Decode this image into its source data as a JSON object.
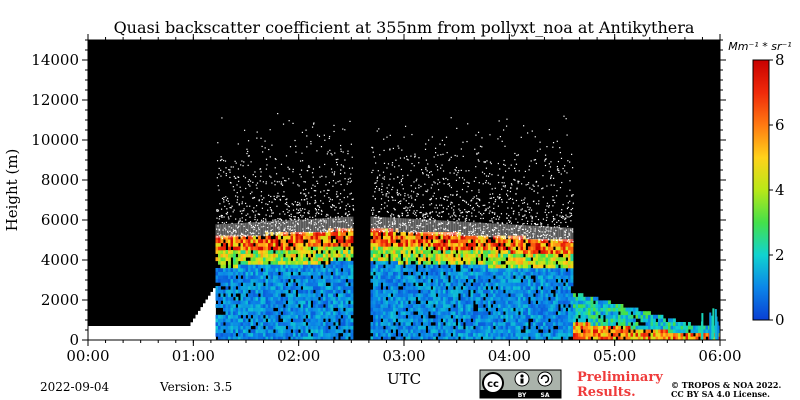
{
  "chart_data": {
    "type": "heatmap",
    "title": "Quasi backscatter coefficient at 355nm from pollyxt_noa at Antikythera",
    "xlabel": "UTC",
    "ylabel": "Height (m)",
    "x_ticks": [
      "00:00",
      "01:00",
      "02:00",
      "03:00",
      "04:00",
      "05:00",
      "06:00"
    ],
    "x_range_hours": [
      0,
      6
    ],
    "y_ticks": [
      0,
      2000,
      4000,
      6000,
      8000,
      10000,
      12000,
      14000
    ],
    "ylim": [
      0,
      15000
    ],
    "colorbar": {
      "unit_label": "Mm⁻¹ * sr⁻¹",
      "ticks": [
        0,
        2,
        4,
        6,
        8
      ],
      "range": [
        0,
        8
      ],
      "colors": [
        "#0a3fd4",
        "#0b86e8",
        "#10d3d0",
        "#44e04a",
        "#b8e818",
        "#ffd21a",
        "#ff7a12",
        "#f02a0a",
        "#c80000"
      ]
    },
    "no_data_color": "#000000",
    "saturated_color": "#ffffff",
    "data_gap_hours": [
      2.5,
      2.68
    ],
    "profile_bands": [
      {
        "name": "night-low-signal",
        "from_hours": 0,
        "to_hours": 1.2,
        "top_m": 700
      },
      {
        "name": "observation",
        "from_hours": 1.2,
        "to_hours": 4.6,
        "top_m": 5500
      },
      {
        "name": "post-observation",
        "from_hours": 4.6,
        "to_hours": 6,
        "top_m": 2300
      }
    ]
  },
  "footer": {
    "date": "2022-09-04",
    "version": "Version: 3.5",
    "preliminary_line1": "Preliminary",
    "preliminary_line2": "Results.",
    "copyright_line1": "© TROPOS & NOA 2022.",
    "copyright_line2": "CC BY SA 4.0 License.",
    "license_badge": {
      "cc": "cc",
      "by": "BY",
      "sa": "SA",
      "icon": "creative-commons-badge"
    }
  }
}
